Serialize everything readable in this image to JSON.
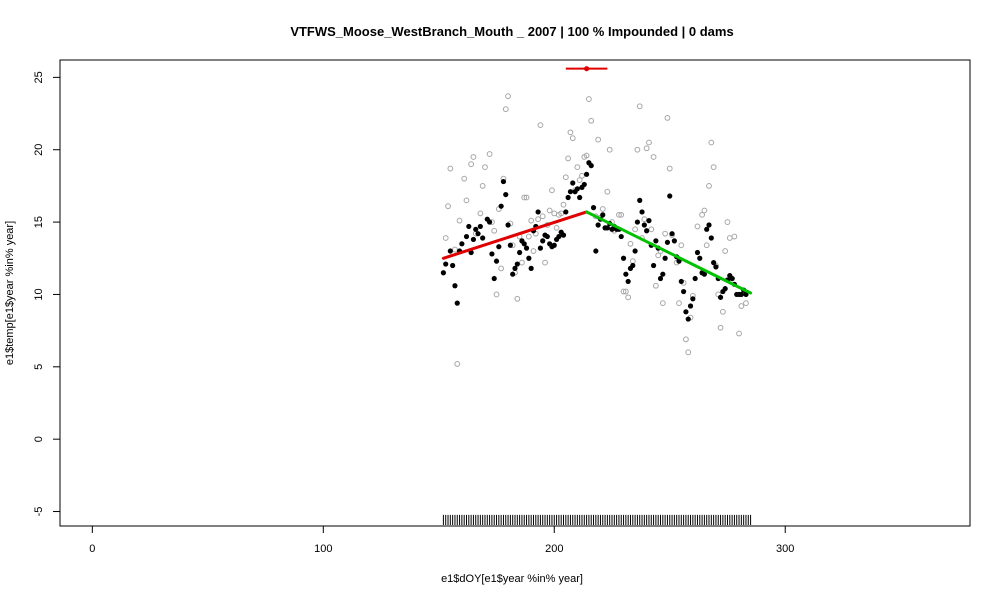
{
  "chart_data": {
    "type": "scatter",
    "title": "VTFWS_Moose_WestBranch_Mouth _ 2007   |   100  % Impounded |  0  dams",
    "xlabel": "e1$dOY[e1$year %in% year]",
    "ylabel": "e1$temp[e1$year %in% year]",
    "xlim": [
      -14,
      380
    ],
    "ylim": [
      -6,
      26.2
    ],
    "x_ticks": [
      0,
      100,
      200,
      300
    ],
    "x_tick_labels": [
      "0",
      "100",
      "200",
      "300"
    ],
    "y_ticks": [
      -5,
      0,
      5,
      10,
      15,
      20,
      25
    ],
    "y_tick_labels": [
      "-5",
      "0",
      "5",
      "10",
      "15",
      "20",
      "25"
    ],
    "grid": false,
    "legend": "none",
    "colors": {
      "gray_points": "#a6a6a6",
      "black_points": "#000000",
      "rising_segment": "#e00000",
      "falling_segment": "#00c000",
      "peak_marker": "#e00000",
      "rug": "#000000"
    },
    "gray_points": [
      [
        153,
        13.9
      ],
      [
        154,
        16.1
      ],
      [
        155,
        18.7
      ],
      [
        157,
        13.1
      ],
      [
        158,
        5.2
      ],
      [
        159,
        15.1
      ],
      [
        161,
        18.0
      ],
      [
        162,
        16.5
      ],
      [
        164,
        19.0
      ],
      [
        165,
        19.5
      ],
      [
        166,
        14.2
      ],
      [
        168,
        15.6
      ],
      [
        169,
        17.5
      ],
      [
        170,
        18.8
      ],
      [
        172,
        19.7
      ],
      [
        173,
        15.0
      ],
      [
        174,
        14.4
      ],
      [
        175,
        10.0
      ],
      [
        176,
        15.9
      ],
      [
        177,
        11.8
      ],
      [
        178,
        18.0
      ],
      [
        179,
        22.8
      ],
      [
        180,
        23.7
      ],
      [
        181,
        14.9
      ],
      [
        182,
        13.4
      ],
      [
        183,
        11.5
      ],
      [
        184,
        9.7
      ],
      [
        185,
        14.0
      ],
      [
        186,
        12.2
      ],
      [
        187,
        16.7
      ],
      [
        188,
        16.7
      ],
      [
        189,
        14.0
      ],
      [
        190,
        15.1
      ],
      [
        191,
        13.0
      ],
      [
        192,
        14.2
      ],
      [
        193,
        15.2
      ],
      [
        194,
        21.7
      ],
      [
        195,
        15.4
      ],
      [
        196,
        12.2
      ],
      [
        197,
        14.8
      ],
      [
        198,
        15.8
      ],
      [
        199,
        17.2
      ],
      [
        200,
        15.6
      ],
      [
        201,
        14.6
      ],
      [
        202,
        15.5
      ],
      [
        203,
        15.6
      ],
      [
        204,
        16.2
      ],
      [
        205,
        18.1
      ],
      [
        206,
        19.4
      ],
      [
        207,
        21.2
      ],
      [
        208,
        20.8
      ],
      [
        209,
        17.2
      ],
      [
        210,
        18.8
      ],
      [
        211,
        17.9
      ],
      [
        212,
        18.2
      ],
      [
        213,
        19.5
      ],
      [
        214,
        19.6
      ],
      [
        215,
        23.5
      ],
      [
        216,
        22.0
      ],
      [
        218,
        15.4
      ],
      [
        219,
        20.7
      ],
      [
        220,
        15.3
      ],
      [
        221,
        15.9
      ],
      [
        223,
        17.1
      ],
      [
        224,
        20.0
      ],
      [
        225,
        15.0
      ],
      [
        226,
        14.4
      ],
      [
        228,
        15.5
      ],
      [
        229,
        15.5
      ],
      [
        230,
        10.2
      ],
      [
        231,
        10.2
      ],
      [
        232,
        9.8
      ],
      [
        233,
        13.5
      ],
      [
        234,
        12.3
      ],
      [
        235,
        14.5
      ],
      [
        236,
        20.0
      ],
      [
        237,
        23.0
      ],
      [
        238,
        13.9
      ],
      [
        239,
        15.2
      ],
      [
        240,
        20.1
      ],
      [
        241,
        20.5
      ],
      [
        242,
        14.5
      ],
      [
        243,
        19.5
      ],
      [
        244,
        10.6
      ],
      [
        245,
        12.7
      ],
      [
        246,
        13.0
      ],
      [
        247,
        9.4
      ],
      [
        248,
        14.2
      ],
      [
        249,
        22.2
      ],
      [
        250,
        18.7
      ],
      [
        251,
        14.1
      ],
      [
        253,
        12.2
      ],
      [
        254,
        9.4
      ],
      [
        255,
        13.4
      ],
      [
        256,
        10.8
      ],
      [
        257,
        6.9
      ],
      [
        258,
        6.0
      ],
      [
        259,
        8.4
      ],
      [
        260,
        9.9
      ],
      [
        262,
        14.7
      ],
      [
        264,
        15.5
      ],
      [
        265,
        15.8
      ],
      [
        266,
        13.4
      ],
      [
        267,
        17.5
      ],
      [
        268,
        20.5
      ],
      [
        269,
        18.8
      ],
      [
        270,
        12.0
      ],
      [
        271,
        10.0
      ],
      [
        272,
        7.7
      ],
      [
        273,
        8.8
      ],
      [
        274,
        13.0
      ],
      [
        275,
        15.0
      ],
      [
        276,
        13.9
      ],
      [
        277,
        11.1
      ],
      [
        278,
        14.0
      ],
      [
        280,
        7.3
      ],
      [
        281,
        9.2
      ],
      [
        283,
        9.4
      ]
    ],
    "black_points": [
      [
        152,
        11.5
      ],
      [
        153,
        12.1
      ],
      [
        155,
        13.0
      ],
      [
        156,
        12.0
      ],
      [
        157,
        10.6
      ],
      [
        158,
        9.4
      ],
      [
        159,
        13.0
      ],
      [
        160,
        13.5
      ],
      [
        162,
        14.0
      ],
      [
        163,
        14.7
      ],
      [
        164,
        12.9
      ],
      [
        165,
        13.8
      ],
      [
        166,
        14.5
      ],
      [
        167,
        14.2
      ],
      [
        168,
        14.7
      ],
      [
        169,
        13.9
      ],
      [
        171,
        15.2
      ],
      [
        172,
        15.0
      ],
      [
        173,
        12.8
      ],
      [
        174,
        11.1
      ],
      [
        175,
        12.3
      ],
      [
        176,
        13.3
      ],
      [
        177,
        16.1
      ],
      [
        178,
        17.8
      ],
      [
        179,
        16.9
      ],
      [
        180,
        14.8
      ],
      [
        181,
        13.4
      ],
      [
        182,
        11.4
      ],
      [
        183,
        11.8
      ],
      [
        184,
        12.1
      ],
      [
        185,
        12.9
      ],
      [
        186,
        13.7
      ],
      [
        187,
        13.5
      ],
      [
        188,
        13.2
      ],
      [
        189,
        12.5
      ],
      [
        190,
        11.8
      ],
      [
        191,
        14.4
      ],
      [
        192,
        14.7
      ],
      [
        193,
        15.7
      ],
      [
        194,
        13.2
      ],
      [
        195,
        13.7
      ],
      [
        196,
        14.1
      ],
      [
        197,
        14.0
      ],
      [
        198,
        13.5
      ],
      [
        199,
        13.3
      ],
      [
        200,
        13.4
      ],
      [
        201,
        13.8
      ],
      [
        202,
        14.0
      ],
      [
        203,
        14.3
      ],
      [
        204,
        14.1
      ],
      [
        205,
        15.7
      ],
      [
        206,
        16.7
      ],
      [
        207,
        17.1
      ],
      [
        208,
        17.7
      ],
      [
        209,
        17.1
      ],
      [
        210,
        17.3
      ],
      [
        211,
        16.7
      ],
      [
        212,
        17.4
      ],
      [
        213,
        17.6
      ],
      [
        214,
        18.3
      ],
      [
        215,
        19.1
      ],
      [
        216,
        18.9
      ],
      [
        217,
        16.0
      ],
      [
        218,
        13.0
      ],
      [
        219,
        14.8
      ],
      [
        220,
        15.2
      ],
      [
        221,
        15.5
      ],
      [
        222,
        14.6
      ],
      [
        223,
        14.6
      ],
      [
        224,
        14.9
      ],
      [
        225,
        14.5
      ],
      [
        226,
        14.7
      ],
      [
        227,
        14.5
      ],
      [
        228,
        14.5
      ],
      [
        229,
        14.0
      ],
      [
        230,
        12.5
      ],
      [
        231,
        11.4
      ],
      [
        232,
        10.9
      ],
      [
        233,
        11.8
      ],
      [
        234,
        12.0
      ],
      [
        235,
        13.0
      ],
      [
        236,
        15.0
      ],
      [
        237,
        16.5
      ],
      [
        238,
        15.7
      ],
      [
        239,
        14.8
      ],
      [
        240,
        14.4
      ],
      [
        241,
        15.1
      ],
      [
        242,
        13.4
      ],
      [
        243,
        12.0
      ],
      [
        244,
        13.7
      ],
      [
        245,
        13.2
      ],
      [
        246,
        11.1
      ],
      [
        247,
        11.4
      ],
      [
        248,
        12.5
      ],
      [
        249,
        13.6
      ],
      [
        250,
        16.8
      ],
      [
        251,
        14.2
      ],
      [
        252,
        13.7
      ],
      [
        253,
        12.6
      ],
      [
        254,
        12.3
      ],
      [
        255,
        10.9
      ],
      [
        256,
        10.2
      ],
      [
        257,
        8.8
      ],
      [
        258,
        8.3
      ],
      [
        259,
        9.2
      ],
      [
        260,
        9.7
      ],
      [
        261,
        11.1
      ],
      [
        262,
        12.9
      ],
      [
        263,
        12.5
      ],
      [
        264,
        11.5
      ],
      [
        265,
        11.4
      ],
      [
        266,
        14.5
      ],
      [
        267,
        14.8
      ],
      [
        268,
        13.9
      ],
      [
        269,
        12.2
      ],
      [
        270,
        11.9
      ],
      [
        271,
        11.1
      ],
      [
        272,
        9.8
      ],
      [
        273,
        10.2
      ],
      [
        274,
        10.4
      ],
      [
        275,
        11.0
      ],
      [
        276,
        11.3
      ],
      [
        277,
        11.1
      ],
      [
        278,
        10.7
      ],
      [
        279,
        10.0
      ],
      [
        280,
        10.0
      ],
      [
        281,
        10.0
      ],
      [
        282,
        10.3
      ],
      [
        283,
        10.0
      ]
    ],
    "segments": [
      {
        "x": [
          152,
          214
        ],
        "y": [
          12.5,
          15.7
        ],
        "color": "#e00000"
      },
      {
        "x": [
          214,
          285
        ],
        "y": [
          15.7,
          10.1
        ],
        "color": "#00c000"
      }
    ],
    "peak": {
      "x": 214,
      "y": 25.6,
      "xmin": 205,
      "xmax": 223,
      "color": "#e00000"
    },
    "rug": {
      "y": -5.3,
      "x_start": 152,
      "x_end": 285,
      "step": 1
    }
  }
}
